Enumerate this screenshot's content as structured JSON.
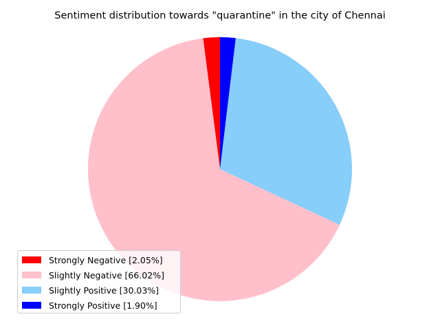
{
  "chart_data": {
    "type": "pie",
    "title": "Sentiment distribution towards \"quarantine\" in the city of Chennai",
    "slices": [
      {
        "label": "Strongly Negative [2.05%]",
        "value": 2.05,
        "color": "#ff0000"
      },
      {
        "label": "Slightly Negative [66.02%]",
        "value": 66.02,
        "color": "#ffc0cb"
      },
      {
        "label": "Slightly Positive [30.03%]",
        "value": 30.03,
        "color": "#87cefa"
      },
      {
        "label": "Strongly Positive [1.90%]",
        "value": 1.9,
        "color": "#0000ff"
      }
    ],
    "direction": "counterclockwise",
    "legend_position": "lower-left"
  }
}
